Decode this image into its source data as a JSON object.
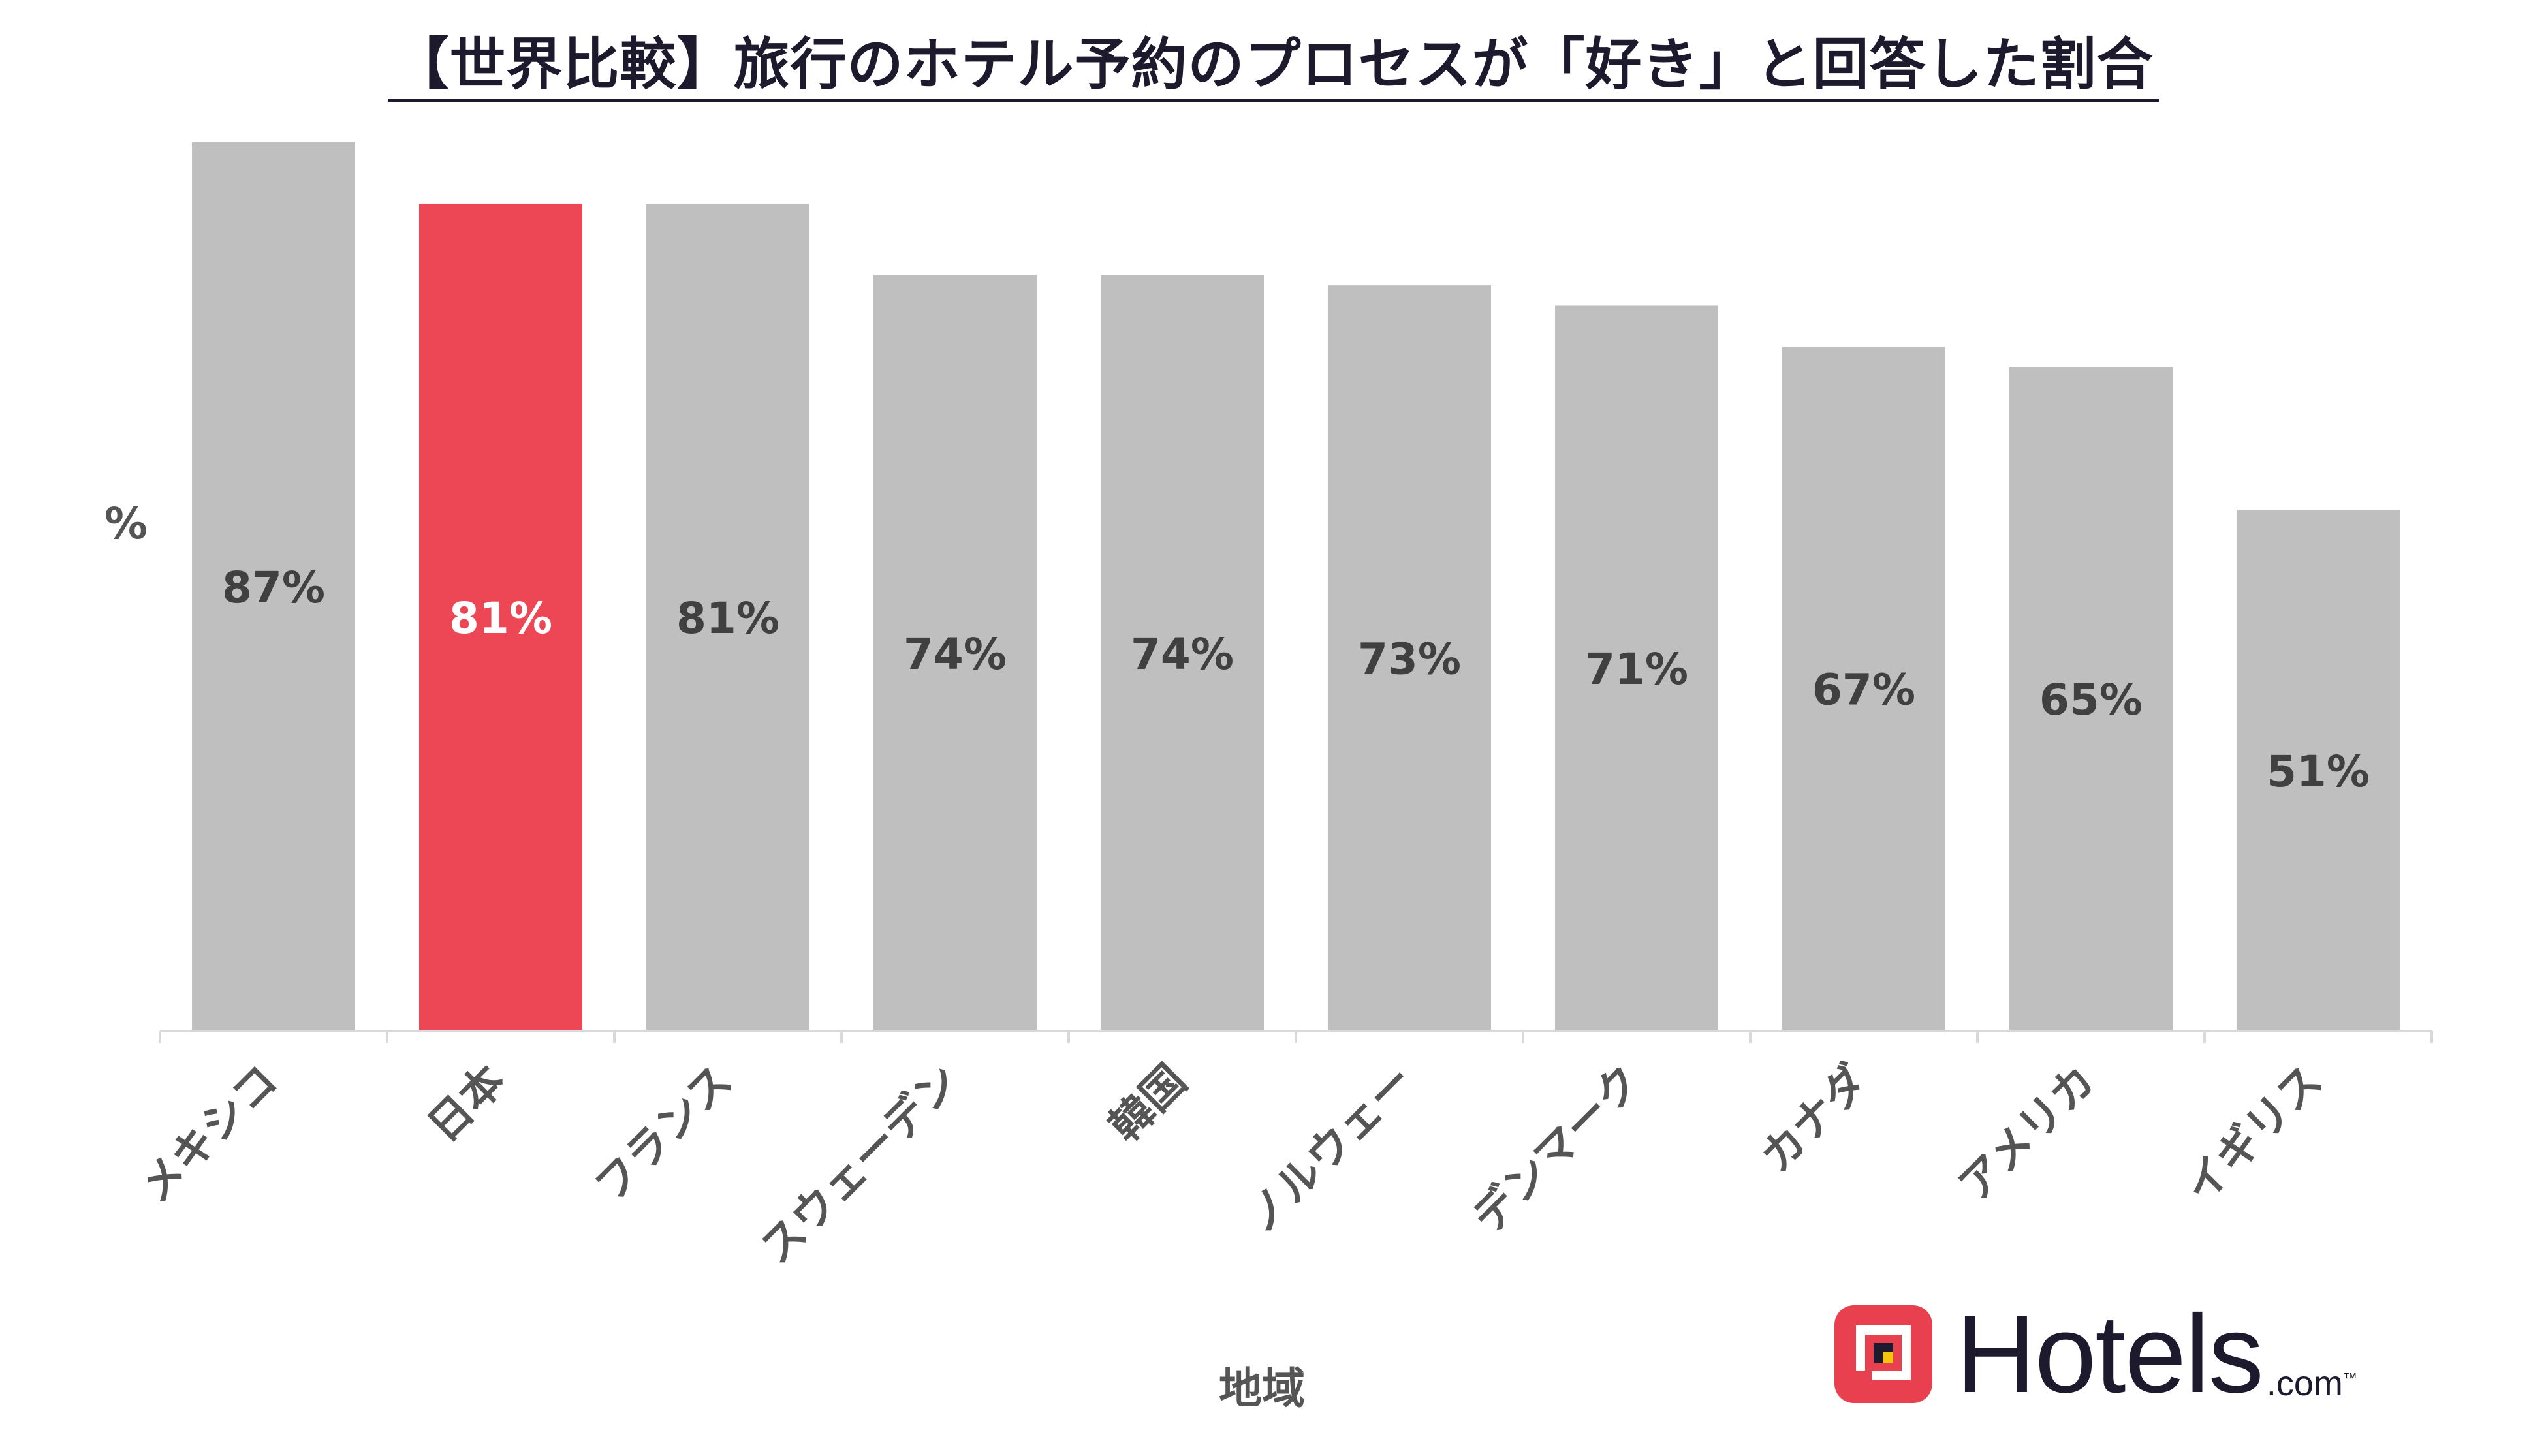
{
  "chart_data": {
    "type": "bar",
    "title": "【世界比較】旅行のホテル予約のプロセスが「好き」と回答した割合",
    "ylabel": "%",
    "xlabel": "地域",
    "ylim": [
      0,
      100
    ],
    "grid": false,
    "legend": "none",
    "categories": [
      "メキシコ",
      "日本",
      "フランス",
      "スウェーデン",
      "韓国",
      "ノルウェー",
      "デンマーク",
      "カナダ",
      "アメリカ",
      "イギリス"
    ],
    "values": [
      87,
      81,
      81,
      74,
      74,
      73,
      71,
      67,
      65,
      51
    ],
    "data_labels": [
      "87%",
      "81%",
      "81%",
      "74%",
      "74%",
      "73%",
      "71%",
      "67%",
      "65%",
      "51%"
    ],
    "highlight_index": 1,
    "colors": {
      "bar": "#bfbfbf",
      "highlight": "#ed4655",
      "label": "#404040",
      "highlight_label": "#ffffff",
      "axis": "#d9d9d9"
    }
  },
  "logo": {
    "name": "Hotels",
    "suffix": ".com",
    "trademark": "™",
    "color": "#e8404f"
  }
}
